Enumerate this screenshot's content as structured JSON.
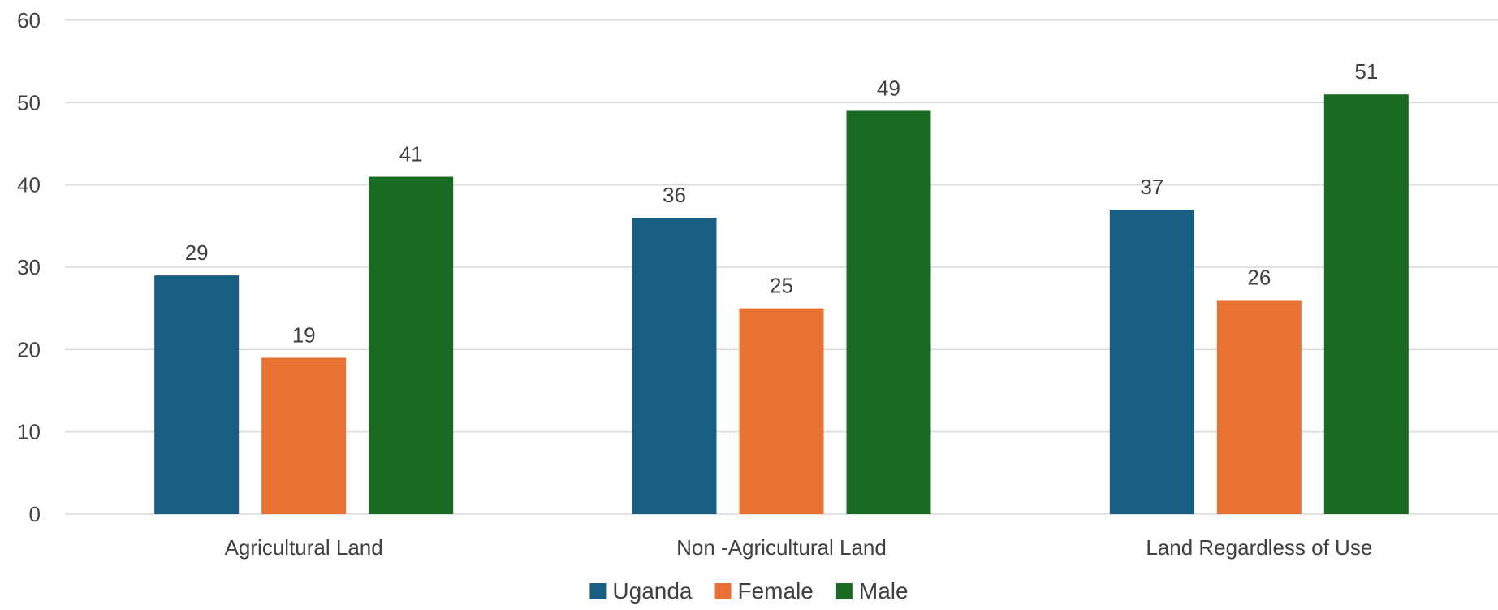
{
  "chart_data": {
    "type": "bar",
    "categories": [
      "Agricultural Land",
      "Non -Agricultural Land",
      "Land Regardless of Use"
    ],
    "series": [
      {
        "name": "Uganda",
        "values": [
          29,
          36,
          37
        ],
        "color": "#185e82"
      },
      {
        "name": "Female",
        "values": [
          19,
          25,
          26
        ],
        "color": "#e97132"
      },
      {
        "name": "Male",
        "values": [
          41,
          49,
          51
        ],
        "color": "#196b24"
      }
    ],
    "ylim": [
      0,
      60
    ],
    "yticks": [
      0,
      10,
      20,
      30,
      40,
      50,
      60
    ],
    "grid": true,
    "legend_position": "bottom",
    "data_labels": true,
    "title": "",
    "xlabel": "",
    "ylabel": ""
  }
}
